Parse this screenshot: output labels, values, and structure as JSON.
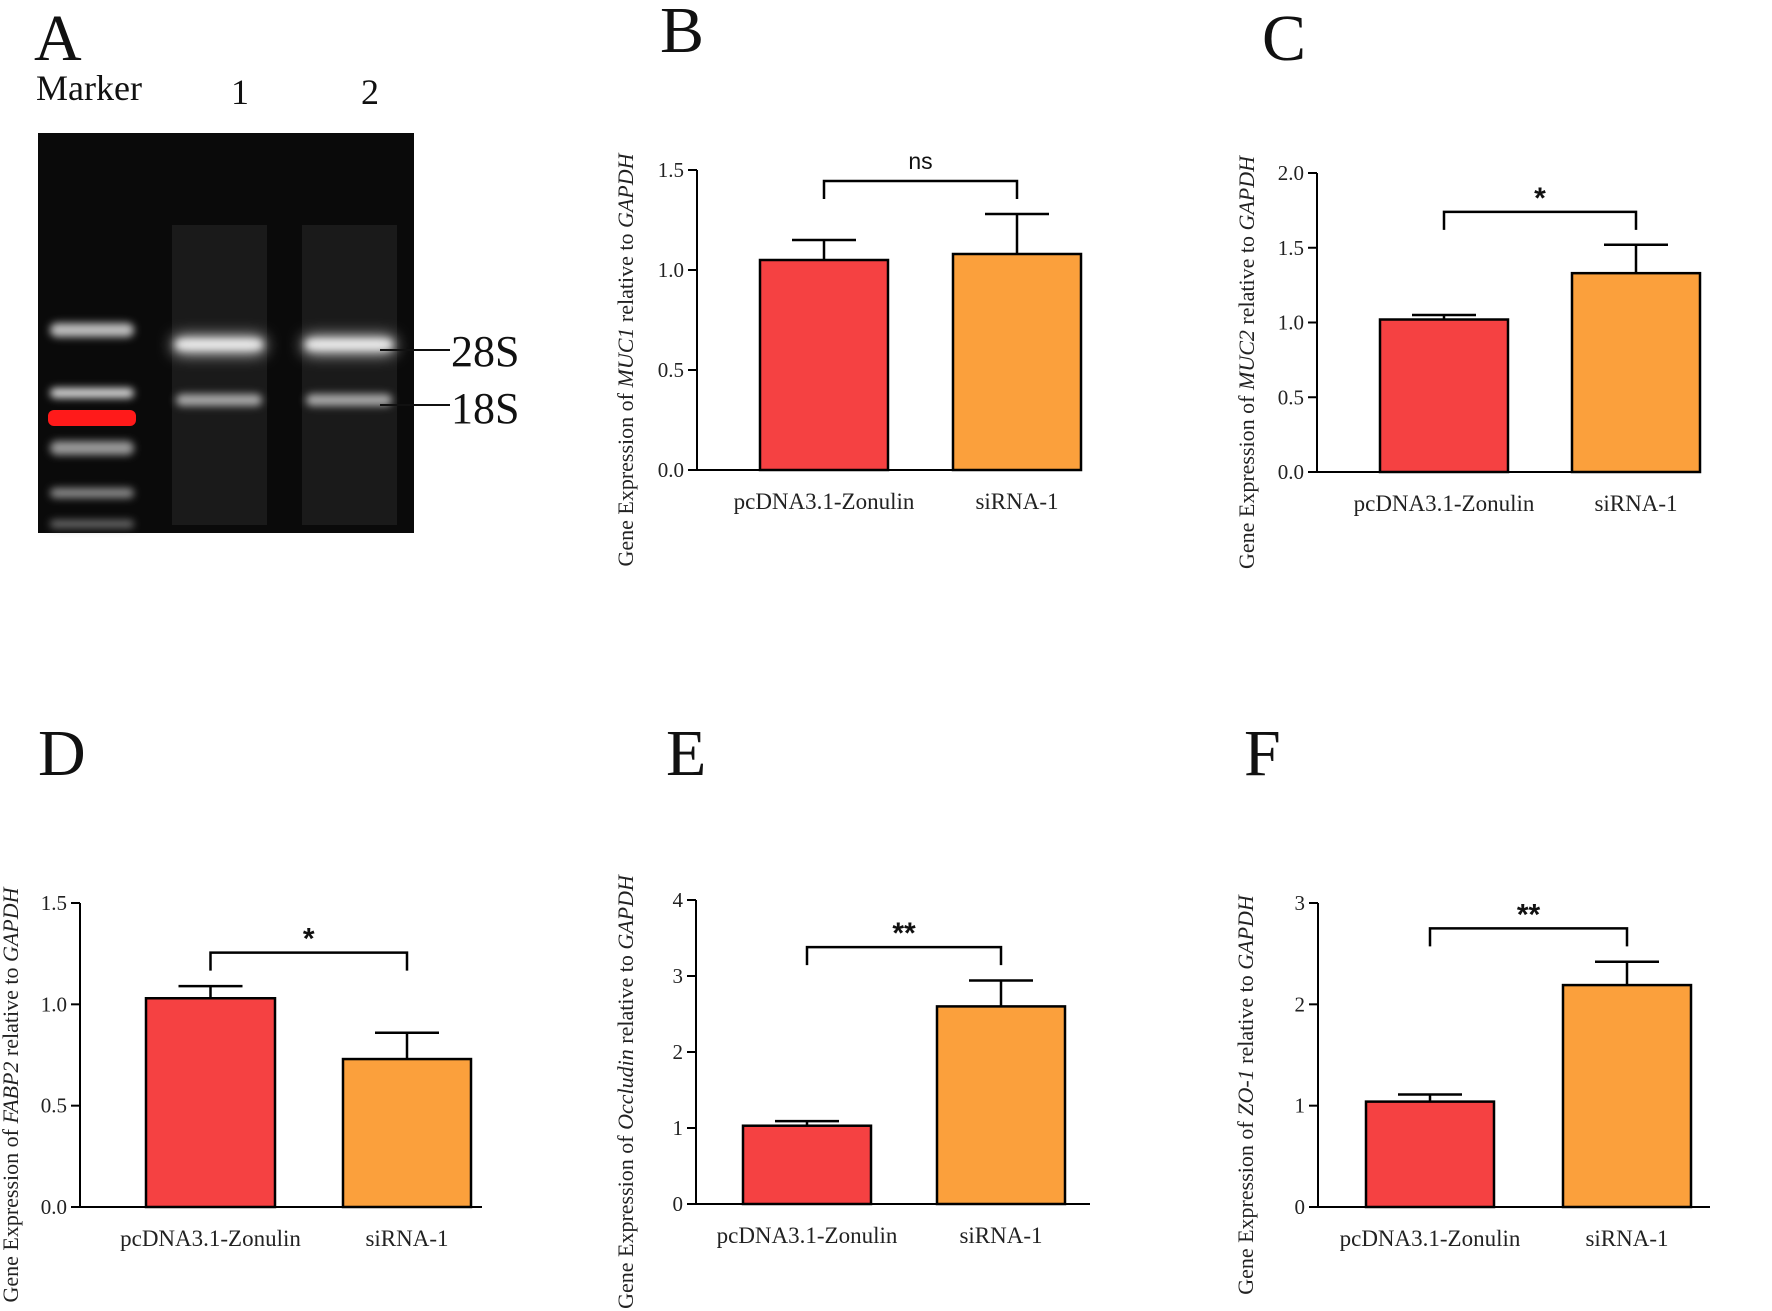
{
  "gel": {
    "panel_letter": "A",
    "lanes": [
      "Marker",
      "1",
      "2"
    ],
    "band_labels": [
      "28S",
      "18S"
    ],
    "colors": {
      "background": "#0a0a0a",
      "band": "#e6e6e6",
      "saturated": "#ff1a1a"
    }
  },
  "colors": {
    "pcdna": "#f54142",
    "sirna": "#fba03c",
    "axis": "#000000"
  },
  "chart_data": [
    {
      "panel_letter": "B",
      "type": "bar",
      "categories": [
        "pcDNA3.1-Zonulin",
        "siRNA-1"
      ],
      "values": [
        1.05,
        1.08
      ],
      "errors": [
        0.1,
        0.2
      ],
      "ylim": [
        0,
        1.5
      ],
      "yticks": [
        "0.0",
        "0.5",
        "1.0",
        "1.5"
      ],
      "ylabel_parts": [
        "Gene Expression of ",
        "MUC1",
        " relative to ",
        "GAPDH"
      ],
      "significance": "ns"
    },
    {
      "panel_letter": "C",
      "type": "bar",
      "categories": [
        "pcDNA3.1-Zonulin",
        "siRNA-1"
      ],
      "values": [
        1.02,
        1.33
      ],
      "errors": [
        0.03,
        0.19
      ],
      "ylim": [
        0,
        2.0
      ],
      "yticks": [
        "0.0",
        "0.5",
        "1.0",
        "1.5",
        "2.0"
      ],
      "ylabel_parts": [
        "Gene Expression of ",
        "MUC2",
        " relative to ",
        "GAPDH"
      ],
      "significance": "*"
    },
    {
      "panel_letter": "D",
      "type": "bar",
      "categories": [
        "pcDNA3.1-Zonulin",
        "siRNA-1"
      ],
      "values": [
        1.03,
        0.73
      ],
      "errors": [
        0.06,
        0.13
      ],
      "ylim": [
        0,
        1.5
      ],
      "yticks": [
        "0.0",
        "0.5",
        "1.0",
        "1.5"
      ],
      "ylabel_parts": [
        "Gene Expression of ",
        "FABP2",
        " relative to ",
        "GAPDH"
      ],
      "significance": "*"
    },
    {
      "panel_letter": "E",
      "type": "bar",
      "categories": [
        "pcDNA3.1-Zonulin",
        "siRNA-1"
      ],
      "values": [
        1.03,
        2.6
      ],
      "errors": [
        0.06,
        0.34
      ],
      "ylim": [
        0,
        4
      ],
      "yticks": [
        "0",
        "1",
        "2",
        "3",
        "4"
      ],
      "ylabel_parts": [
        "Gene Expression of ",
        "Occludin",
        " relative to ",
        "GAPDH"
      ],
      "significance": "**"
    },
    {
      "panel_letter": "F",
      "type": "bar",
      "categories": [
        "pcDNA3.1-Zonulin",
        "siRNA-1"
      ],
      "values": [
        1.04,
        2.19
      ],
      "errors": [
        0.07,
        0.23
      ],
      "ylim": [
        0,
        3
      ],
      "yticks": [
        "0",
        "1",
        "2",
        "3"
      ],
      "ylabel_parts": [
        "Gene Expression of ",
        "ZO-1",
        " relative to ",
        "GAPDH"
      ],
      "significance": "**"
    }
  ]
}
